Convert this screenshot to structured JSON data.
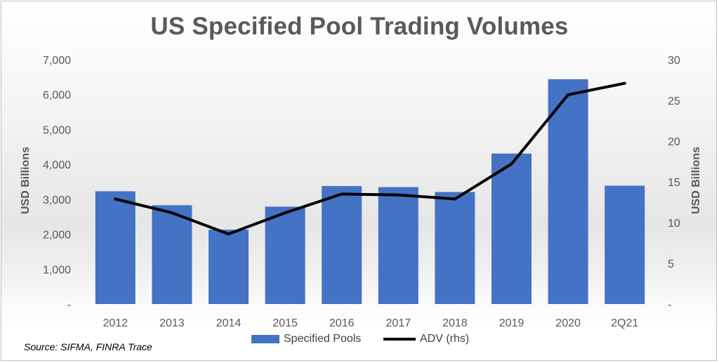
{
  "chart_data": {
    "type": "bar",
    "title": "US Specified Pool Trading Volumes",
    "categories": [
      "2012",
      "2013",
      "2014",
      "2015",
      "2016",
      "2017",
      "2018",
      "2019",
      "2020",
      "2Q21"
    ],
    "series": [
      {
        "name": "Specified Pools",
        "type": "bar",
        "axis": "left",
        "color": "#4472c4",
        "values": [
          3230,
          2830,
          2130,
          2790,
          3380,
          3350,
          3210,
          4310,
          6440,
          3390
        ]
      },
      {
        "name": "ADV (rhs)",
        "type": "line",
        "axis": "right",
        "color": "#000000",
        "values": [
          12.9,
          11.2,
          8.6,
          11.2,
          13.5,
          13.4,
          12.9,
          17.2,
          25.7,
          27.1
        ]
      }
    ],
    "ylabel": "USD Billions",
    "ylabel_right": "USD Billions",
    "ylim": [
      0,
      7000
    ],
    "ylim_right": [
      0,
      30
    ],
    "yticks": [
      0,
      1000,
      2000,
      3000,
      4000,
      5000,
      6000,
      7000
    ],
    "ytick_labels": [
      "-",
      "1,000",
      "2,000",
      "3,000",
      "4,000",
      "5,000",
      "6,000",
      "7,000"
    ],
    "yticks_right": [
      0,
      5,
      10,
      15,
      20,
      25,
      30
    ],
    "ytick_labels_right": [
      "-",
      "5",
      "10",
      "15",
      "20",
      "25",
      "30"
    ],
    "grid": false,
    "legend_position": "bottom",
    "source": "Source: SIFMA, FINRA Trace"
  }
}
